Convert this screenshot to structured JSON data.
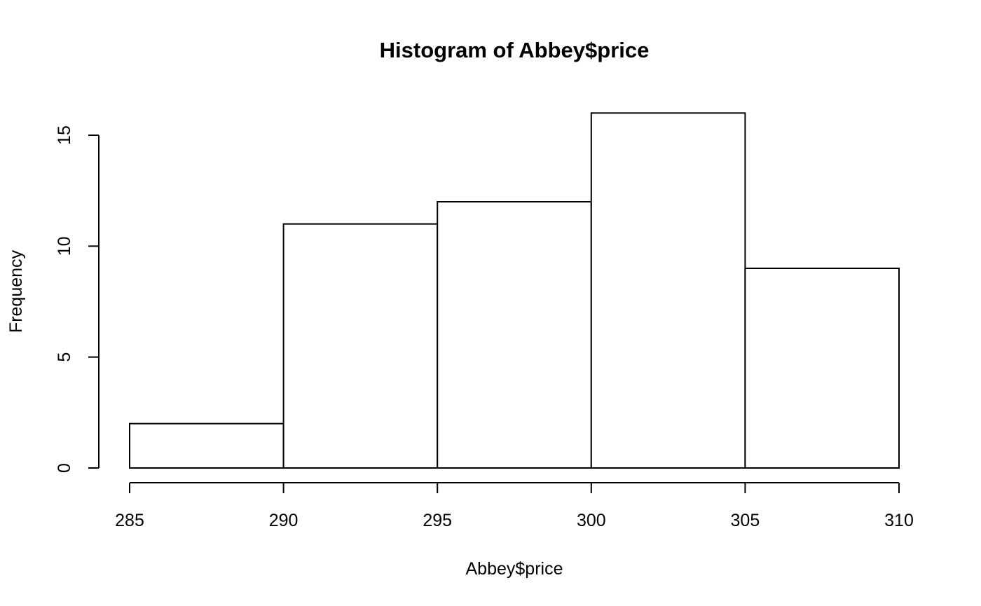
{
  "chart_data": {
    "type": "bar",
    "title": "Histogram of Abbey$price",
    "xlabel": "Abbey$price",
    "ylabel": "Frequency",
    "bins": [
      {
        "from": 285,
        "to": 290,
        "count": 2
      },
      {
        "from": 290,
        "to": 295,
        "count": 11
      },
      {
        "from": 295,
        "to": 300,
        "count": 12
      },
      {
        "from": 300,
        "to": 305,
        "count": 16
      },
      {
        "from": 305,
        "to": 310,
        "count": 9
      }
    ],
    "xlim": [
      285,
      310
    ],
    "ylim": [
      0,
      16
    ],
    "xticks": [
      "285",
      "290",
      "295",
      "300",
      "305",
      "310"
    ],
    "yticks": [
      "0",
      "5",
      "10",
      "15"
    ],
    "grid": false,
    "legend": "none",
    "colors": {
      "bar_fill": "#ffffff",
      "bar_stroke": "#000000",
      "axis": "#000000",
      "text": "#000000"
    }
  }
}
